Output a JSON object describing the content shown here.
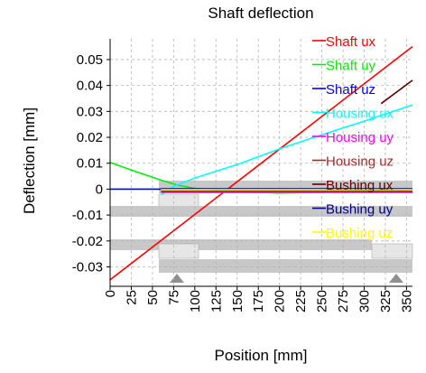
{
  "chart_data": {
    "type": "line",
    "title": "Shaft deflection",
    "xlabel": "Position [mm]",
    "ylabel": "Deflection [mm]",
    "xlim": [
      0,
      357
    ],
    "ylim": [
      -0.0375,
      0.058
    ],
    "x_ticks": [
      "0",
      "25",
      "50",
      "75",
      "100",
      "125",
      "150",
      "175",
      "200",
      "225",
      "250",
      "275",
      "300",
      "325",
      "350"
    ],
    "y_ticks": [
      "0.05",
      "0.04",
      "0.03",
      "0.02",
      "0.01",
      "0",
      "-0.01",
      "-0.02",
      "-0.03"
    ],
    "grid": true,
    "legend_position": "right",
    "series": [
      {
        "name": "Shaft ux",
        "color": "#ff0000",
        "x": [
          0,
          357
        ],
        "y": [
          -0.035,
          0.055
        ]
      },
      {
        "name": "Shaft uy",
        "color": "#00ee00",
        "x": [
          0,
          30,
          60,
          80,
          100,
          150,
          200,
          250,
          300,
          357
        ],
        "y": [
          0.0103,
          0.0068,
          0.0035,
          0.0015,
          0.0003,
          -0.001,
          -0.0015,
          -0.0012,
          -0.0005,
          0
        ]
      },
      {
        "name": "Shaft uz",
        "color": "#0000ee",
        "x": [
          0,
          357
        ],
        "y": [
          0,
          0
        ]
      },
      {
        "name": "Housing ux",
        "color": "#00ffff",
        "x": [
          60,
          75,
          100,
          150,
          200,
          250,
          300,
          357
        ],
        "y": [
          -0.0022,
          0.001,
          0.0043,
          0.0095,
          0.0155,
          0.021,
          0.0262,
          0.0325
        ]
      },
      {
        "name": "Housing uy",
        "color": "#ff00ff",
        "x": [
          60,
          357
        ],
        "y": [
          -0.0012,
          -0.0012
        ]
      },
      {
        "name": "Housing uz",
        "color": "#a52a2a",
        "x": [
          60,
          357
        ],
        "y": [
          -0.0008,
          -0.0008
        ]
      },
      {
        "name": "Bushing ux",
        "color": "#600000",
        "x": [
          320,
          357
        ],
        "y": [
          0.033,
          0.042
        ]
      },
      {
        "name": "Bushing uy",
        "color": "#000080",
        "x": [
          60,
          357
        ],
        "y": [
          0.0001,
          0.0001
        ]
      },
      {
        "name": "Bushing uz",
        "color": "#ffff00",
        "x": [
          60,
          357
        ],
        "y": [
          -0.0002,
          -0.0002
        ]
      }
    ]
  }
}
